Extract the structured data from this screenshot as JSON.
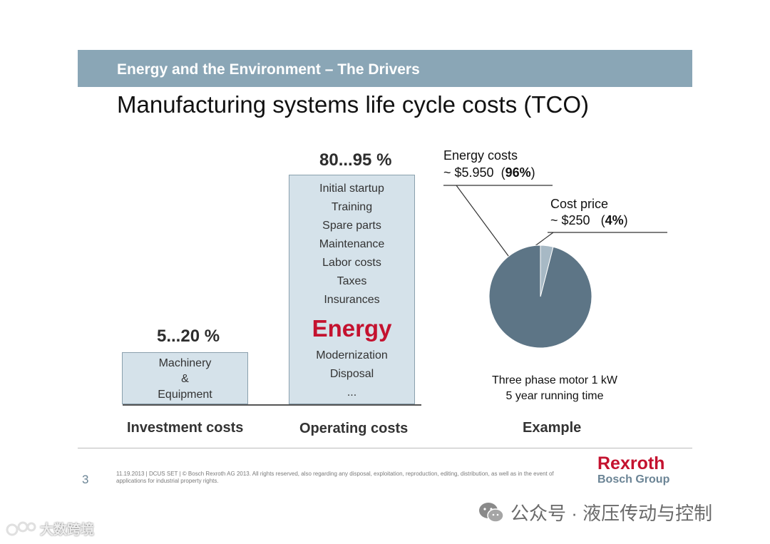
{
  "header": {
    "title": "Energy and the Environment – The Drivers"
  },
  "slide_title": "Manufacturing systems life cycle costs (TCO)",
  "investment": {
    "percent": "5...20 %",
    "lines": [
      "Machinery",
      "&",
      "Equipment"
    ],
    "label": "Investment costs"
  },
  "operating": {
    "percent": "80...95 %",
    "lines_top": [
      "Initial startup",
      "Training",
      "Spare parts",
      "Maintenance",
      "Labor costs",
      "Taxes",
      "Insurances"
    ],
    "highlight": "Energy",
    "lines_bottom": [
      "Modernization",
      "Disposal",
      "..."
    ],
    "label": "Operating costs"
  },
  "example": {
    "label": "Example",
    "caption": [
      "Three phase motor 1 kW",
      "5 year running time"
    ]
  },
  "chart_data": {
    "type": "pie",
    "slices": [
      {
        "label": "Energy costs",
        "value_text": "~ $5.950",
        "percent": 96,
        "percent_text": "96%"
      },
      {
        "label": "Cost price",
        "value_text": "~ $250",
        "percent": 4,
        "percent_text": "4%"
      }
    ],
    "colors": [
      "#5d7586",
      "#a7b9c5"
    ]
  },
  "footer": {
    "page": "3",
    "text": "11.19.2013 | DCUS SET | © Bosch Rexroth AG 2013. All rights reserved, also regarding any disposal, exploitation, reproduction, editing, distribution, as well as in the event of applications for industrial property rights.",
    "brand": "Rexroth",
    "group": "Bosch Group"
  },
  "watermark": {
    "right": "公众号 · 液压传动与控制",
    "left": "大数跨境"
  },
  "colors": {
    "accent": "#c4122f",
    "header_bg": "#8aa6b6",
    "box_bg": "#d5e2ea",
    "brand_gray": "#6b8495"
  }
}
